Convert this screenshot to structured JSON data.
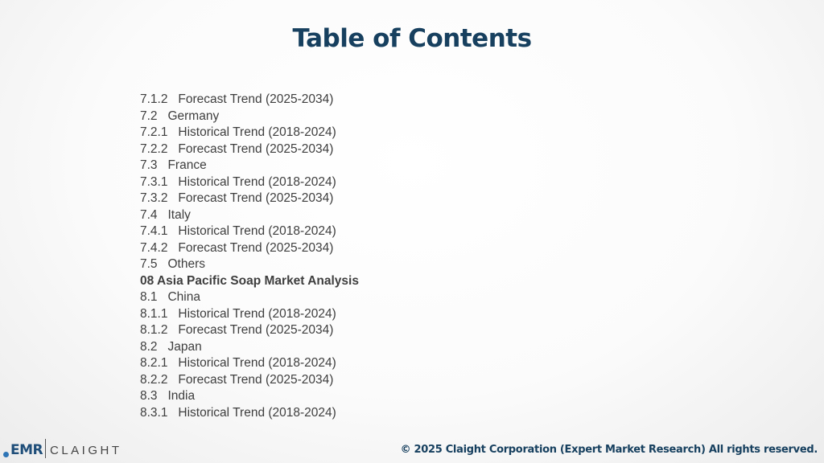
{
  "page": {
    "title": "Table of Contents"
  },
  "toc": {
    "items": [
      {
        "text": "7.1.2   Forecast Trend (2025-2034)",
        "bold": false
      },
      {
        "text": "7.2   Germany",
        "bold": false
      },
      {
        "text": "7.2.1   Historical Trend (2018-2024)",
        "bold": false
      },
      {
        "text": "7.2.2   Forecast Trend (2025-2034)",
        "bold": false
      },
      {
        "text": "7.3   France",
        "bold": false
      },
      {
        "text": "7.3.1   Historical Trend (2018-2024)",
        "bold": false
      },
      {
        "text": "7.3.2   Forecast Trend (2025-2034)",
        "bold": false
      },
      {
        "text": "7.4   Italy",
        "bold": false
      },
      {
        "text": "7.4.1   Historical Trend (2018-2024)",
        "bold": false
      },
      {
        "text": "7.4.2   Forecast Trend (2025-2034)",
        "bold": false
      },
      {
        "text": "7.5   Others",
        "bold": false
      },
      {
        "text": "08 Asia Pacific Soap Market Analysis",
        "bold": true
      },
      {
        "text": "8.1   China",
        "bold": false
      },
      {
        "text": "8.1.1   Historical Trend (2018-2024)",
        "bold": false
      },
      {
        "text": "8.1.2   Forecast Trend (2025-2034)",
        "bold": false
      },
      {
        "text": "8.2   Japan",
        "bold": false
      },
      {
        "text": "8.2.1   Historical Trend (2018-2024)",
        "bold": false
      },
      {
        "text": "8.2.2   Forecast Trend (2025-2034)",
        "bold": false
      },
      {
        "text": "8.3   India",
        "bold": false
      },
      {
        "text": "8.3.1   Historical Trend (2018-2024)",
        "bold": false
      }
    ]
  },
  "footer": {
    "logo_emr": "EMR",
    "logo_claight": "CLAIGHT",
    "copyright": "© 2025 Claight Corporation (Expert Market Research) All rights reserved."
  },
  "colors": {
    "title": "#17405f",
    "body_text": "#3e3e3e",
    "logo_blue": "#1f4e79"
  }
}
